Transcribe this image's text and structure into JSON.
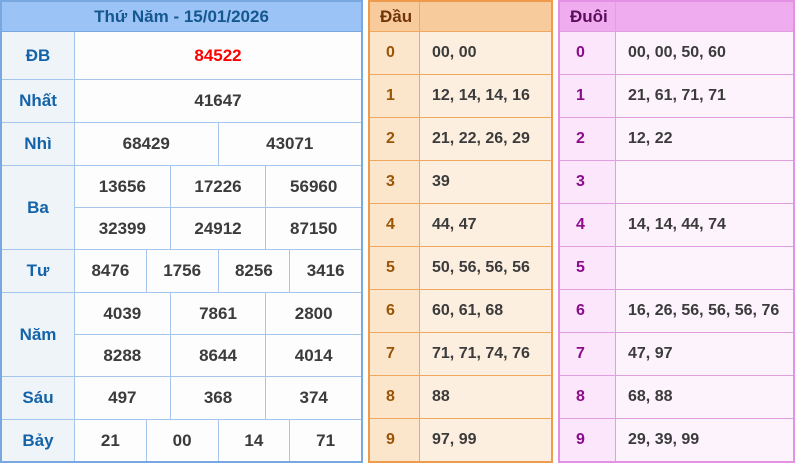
{
  "results": {
    "title": "Thứ Năm - 15/01/2026",
    "rows": [
      {
        "label": "ĐB",
        "cells": [
          [
            "84522"
          ]
        ]
      },
      {
        "label": "Nhất",
        "cells": [
          [
            "41647"
          ]
        ]
      },
      {
        "label": "Nhì",
        "cells": [
          [
            "68429",
            "43071"
          ]
        ]
      },
      {
        "label": "Ba",
        "cells": [
          [
            "13656",
            "17226",
            "56960"
          ],
          [
            "32399",
            "24912",
            "87150"
          ]
        ]
      },
      {
        "label": "Tư",
        "cells": [
          [
            "8476",
            "1756",
            "8256",
            "3416"
          ]
        ]
      },
      {
        "label": "Năm",
        "cells": [
          [
            "4039",
            "7861",
            "2800"
          ],
          [
            "8288",
            "8644",
            "4014"
          ]
        ]
      },
      {
        "label": "Sáu",
        "cells": [
          [
            "497",
            "368",
            "374"
          ]
        ]
      },
      {
        "label": "Bảy",
        "cells": [
          [
            "21",
            "00",
            "14",
            "71"
          ]
        ]
      }
    ]
  },
  "dau": {
    "header": "Đầu",
    "rows": [
      {
        "digit": "0",
        "values": "00, 00"
      },
      {
        "digit": "1",
        "values": "12, 14, 14, 16"
      },
      {
        "digit": "2",
        "values": "21, 22, 26, 29"
      },
      {
        "digit": "3",
        "values": "39"
      },
      {
        "digit": "4",
        "values": "44, 47"
      },
      {
        "digit": "5",
        "values": "50, 56, 56, 56"
      },
      {
        "digit": "6",
        "values": "60, 61, 68"
      },
      {
        "digit": "7",
        "values": "71, 71, 74, 76"
      },
      {
        "digit": "8",
        "values": "88"
      },
      {
        "digit": "9",
        "values": "97, 99"
      }
    ]
  },
  "duoi": {
    "header": "Đuôi",
    "rows": [
      {
        "digit": "0",
        "values": "00, 00, 50, 60"
      },
      {
        "digit": "1",
        "values": "21, 61, 71, 71"
      },
      {
        "digit": "2",
        "values": "12, 22"
      },
      {
        "digit": "3",
        "values": ""
      },
      {
        "digit": "4",
        "values": "14, 14, 44, 74"
      },
      {
        "digit": "5",
        "values": ""
      },
      {
        "digit": "6",
        "values": "16, 26, 56, 56, 56, 76"
      },
      {
        "digit": "7",
        "values": "47, 97"
      },
      {
        "digit": "8",
        "values": "68, 88"
      },
      {
        "digit": "9",
        "values": "29, 39, 99"
      }
    ]
  },
  "colors": {
    "results_header_bg": "#9cc3f6",
    "results_header_text": "#14588f",
    "results_border": "#79a7e0",
    "results_label_text": "#1463a8",
    "special_prize_text": "#ff0000",
    "value_text": "#3b3b3b",
    "dau_header_bg": "#f8cb9d",
    "dau_border": "#ef9b4d",
    "dau_digit_text": "#9a5506",
    "dau_cell_bg": "#fdefe0",
    "duoi_header_bg": "#efadef",
    "duoi_border": "#e391e3",
    "duoi_digit_text": "#8c0b8c",
    "duoi_cell_bg": "#fdf3fd"
  }
}
